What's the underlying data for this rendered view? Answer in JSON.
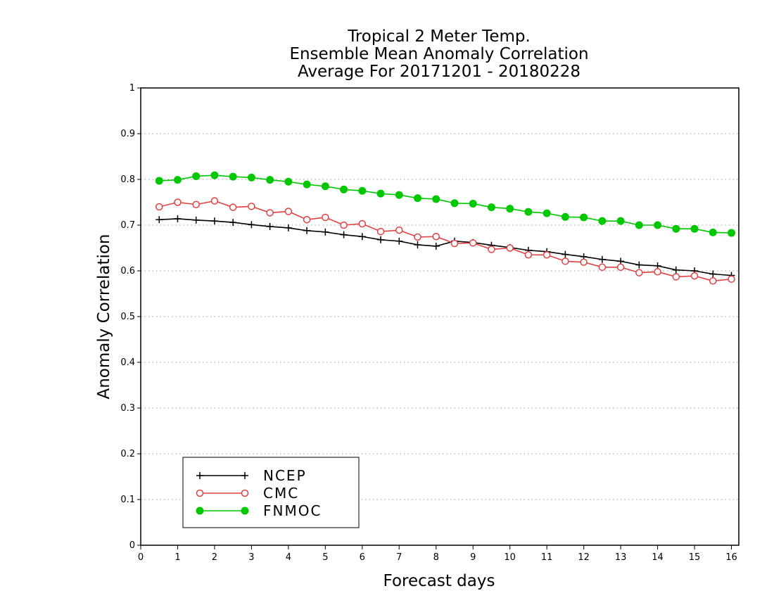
{
  "chart_data": {
    "type": "line",
    "title_lines": [
      "Tropical 2 Meter Temp.",
      "Ensemble Mean Anomaly Correlation",
      "Average For 20171201 - 20180228"
    ],
    "xlabel": "Forecast days",
    "ylabel": "Anomaly Correlation",
    "xlim": [
      0,
      16.2
    ],
    "ylim": [
      0,
      1
    ],
    "x_ticks": [
      "0",
      "1",
      "2",
      "3",
      "4",
      "5",
      "6",
      "7",
      "8",
      "9",
      "10",
      "11",
      "12",
      "13",
      "14",
      "15",
      "16"
    ],
    "y_ticks": [
      "0",
      "0.1",
      "0.2",
      "0.3",
      "0.4",
      "0.5",
      "0.6",
      "0.7",
      "0.8",
      "0.9",
      "1"
    ],
    "grid": true,
    "legend_position": "bottom-left",
    "x": [
      0.5,
      1,
      1.5,
      2,
      2.5,
      3,
      3.5,
      4,
      4.5,
      5,
      5.5,
      6,
      6.5,
      7,
      7.5,
      8,
      8.5,
      9,
      9.5,
      10,
      10.5,
      11,
      11.5,
      12,
      12.5,
      13,
      13.5,
      14,
      14.5,
      15,
      15.5,
      16
    ],
    "series": [
      {
        "name": "NCEP",
        "color": "#000000",
        "marker": "plus",
        "values": [
          0.712,
          0.714,
          0.711,
          0.709,
          0.706,
          0.701,
          0.697,
          0.694,
          0.688,
          0.685,
          0.679,
          0.675,
          0.668,
          0.665,
          0.657,
          0.654,
          0.665,
          0.662,
          0.656,
          0.651,
          0.645,
          0.642,
          0.636,
          0.631,
          0.625,
          0.621,
          0.613,
          0.611,
          0.602,
          0.6,
          0.593,
          0.59
        ]
      },
      {
        "name": "CMC",
        "color": "#e04040",
        "marker": "open-circle",
        "values": [
          0.74,
          0.75,
          0.745,
          0.753,
          0.739,
          0.741,
          0.727,
          0.73,
          0.712,
          0.717,
          0.7,
          0.703,
          0.686,
          0.689,
          0.674,
          0.675,
          0.66,
          0.661,
          0.647,
          0.65,
          0.635,
          0.635,
          0.621,
          0.619,
          0.608,
          0.608,
          0.596,
          0.598,
          0.587,
          0.589,
          0.578,
          0.582
        ]
      },
      {
        "name": "FNMOC",
        "color": "#00c800",
        "marker": "filled-circle",
        "values": [
          0.797,
          0.799,
          0.807,
          0.809,
          0.806,
          0.804,
          0.799,
          0.795,
          0.789,
          0.785,
          0.778,
          0.775,
          0.769,
          0.766,
          0.759,
          0.757,
          0.748,
          0.747,
          0.739,
          0.736,
          0.729,
          0.726,
          0.718,
          0.717,
          0.709,
          0.709,
          0.7,
          0.7,
          0.692,
          0.692,
          0.684,
          0.683
        ]
      }
    ]
  }
}
